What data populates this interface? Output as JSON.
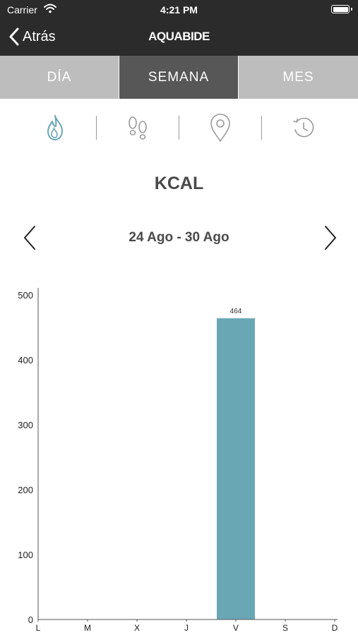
{
  "status_bar": {
    "carrier": "Carrier",
    "time": "4:21 PM",
    "icons": [
      "wifi-icon",
      "battery-icon"
    ]
  },
  "nav": {
    "back_label": "Atrás",
    "logo_text": "AQUABIDE"
  },
  "tabs": [
    {
      "label": "DÍA",
      "active": false
    },
    {
      "label": "SEMANA",
      "active": true
    },
    {
      "label": "MES",
      "active": false
    }
  ],
  "metric_icons": [
    {
      "name": "flame-icon",
      "active": true
    },
    {
      "name": "footprints-icon",
      "active": false
    },
    {
      "name": "location-pin-icon",
      "active": false
    },
    {
      "name": "history-clock-icon",
      "active": false
    }
  ],
  "colors": {
    "accent": "#69a7b5",
    "tab_active": "#575757",
    "tab_inactive": "#bdbdbd",
    "nav_bg": "#2b2b2b"
  },
  "metric_title": "KCAL",
  "date_range": "24 Ago - 30 Ago",
  "chart_data": {
    "type": "bar",
    "categories": [
      "L",
      "M",
      "X",
      "J",
      "V",
      "S",
      "D"
    ],
    "values": [
      0,
      0,
      0,
      0,
      464,
      0,
      0
    ],
    "data_labels": [
      "",
      "",
      "",
      "",
      "464",
      "",
      ""
    ],
    "ylim": [
      0,
      500
    ],
    "yticks": [
      0,
      100,
      200,
      300,
      400,
      500
    ],
    "title": "",
    "xlabel": "",
    "ylabel": "",
    "grid": false,
    "bar_color": "#69a7b5"
  }
}
